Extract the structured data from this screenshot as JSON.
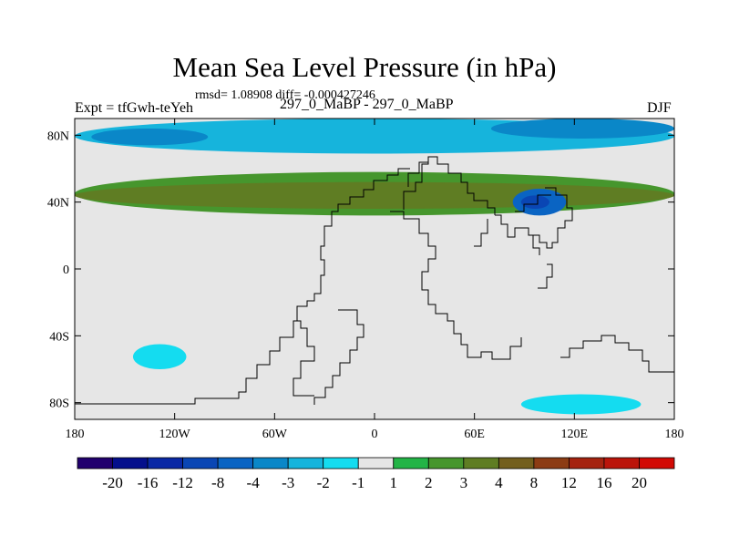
{
  "chart_data": {
    "type": "heatmap",
    "title": "Mean Sea Level Pressure (in hPa)",
    "subtitle": "rmsd= 1.08908 diff= -0.000427246",
    "left_label": "Expt = tfGwh-teYeh",
    "center_label": "297_0_MaBP - 297_0_MaBP",
    "right_label": "DJF",
    "xlim": [
      -180,
      180
    ],
    "ylim": [
      -90,
      90
    ],
    "x_ticks": [
      {
        "value": -180,
        "label": "180"
      },
      {
        "value": -120,
        "label": "120W"
      },
      {
        "value": -60,
        "label": "60W"
      },
      {
        "value": 0,
        "label": "0"
      },
      {
        "value": 60,
        "label": "60E"
      },
      {
        "value": 120,
        "label": "120E"
      },
      {
        "value": 180,
        "label": "180"
      }
    ],
    "y_ticks": [
      {
        "value": 80,
        "label": "80N"
      },
      {
        "value": 40,
        "label": "40N"
      },
      {
        "value": 0,
        "label": "0"
      },
      {
        "value": -40,
        "label": "40S"
      },
      {
        "value": -80,
        "label": "80S"
      }
    ],
    "colorbar": {
      "levels": [
        "-20",
        "-16",
        "-12",
        "-8",
        "-4",
        "-3",
        "-2",
        "-1",
        "1",
        "2",
        "3",
        "4",
        "8",
        "12",
        "16",
        "20"
      ],
      "colors": [
        "#21006e",
        "#050f8c",
        "#0a28a5",
        "#0a46b4",
        "#0a64c3",
        "#0a87c8",
        "#16b4dc",
        "#14dcf0",
        "#e6e6e6",
        "#23b446",
        "#46962d",
        "#5f7d23",
        "#735f1e",
        "#8c3c14",
        "#a5230f",
        "#bb140a",
        "#d20a05"
      ]
    },
    "regions": [
      {
        "name": "arctic-band",
        "level": "-2",
        "lon": [
          -180,
          180
        ],
        "lat": [
          69,
          90
        ]
      },
      {
        "name": "arctic-core-pacific",
        "level": "-3",
        "lon": [
          -170,
          -100
        ],
        "lat": [
          74,
          84
        ]
      },
      {
        "name": "arctic-core-siberia",
        "level": "-3",
        "lon": [
          70,
          180
        ],
        "lat": [
          78,
          90
        ]
      },
      {
        "name": "north-mid-lat-high",
        "level": "2",
        "lon": [
          -180,
          180
        ],
        "lat": [
          32,
          58
        ]
      },
      {
        "name": "north-mid-lat-high-core",
        "level": "3",
        "lon": [
          -180,
          180
        ],
        "lat": [
          36,
          52
        ]
      },
      {
        "name": "east-asia-low",
        "level": "-4",
        "lon": [
          83,
          115
        ],
        "lat": [
          32,
          48
        ]
      },
      {
        "name": "east-asia-low-core",
        "level": "-8",
        "lon": [
          88,
          105
        ],
        "lat": [
          36,
          44
        ]
      },
      {
        "name": "southern-pacific-low",
        "level": "-1",
        "lon": [
          -145,
          -113
        ],
        "lat": [
          -45,
          -60
        ]
      },
      {
        "name": "southern-ocean-low",
        "level": "-1",
        "lon": [
          88,
          160
        ],
        "lat": [
          -75,
          -87
        ]
      }
    ]
  }
}
